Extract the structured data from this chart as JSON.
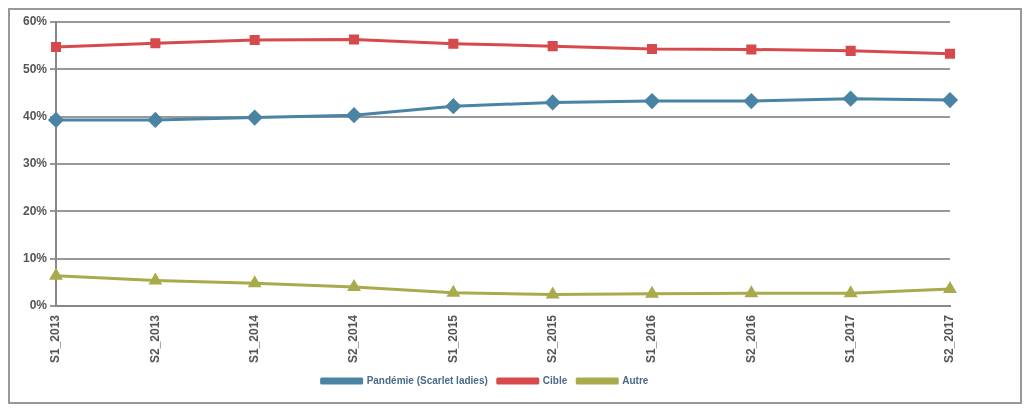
{
  "chart_data": {
    "type": "line",
    "categories": [
      "S1_2013",
      "S2_2013",
      "S1_2014",
      "S2_2014",
      "S1_2015",
      "S2_2015",
      "S1_2016",
      "S2_2016",
      "S1_2017",
      "S2_2017"
    ],
    "series": [
      {
        "name": "Pandémie (Scarlet ladies)",
        "color": "#4a84a4",
        "marker": "diamond",
        "values": [
          39.3,
          39.3,
          39.8,
          40.3,
          42.2,
          43.0,
          43.3,
          43.3,
          43.8,
          43.5
        ]
      },
      {
        "name": "Cible",
        "color": "#d64a4c",
        "marker": "square",
        "values": [
          54.7,
          55.5,
          56.2,
          56.3,
          55.4,
          54.9,
          54.3,
          54.2,
          53.9,
          53.3
        ]
      },
      {
        "name": "Autre",
        "color": "#a8aa4c",
        "marker": "triangle",
        "values": [
          6.4,
          5.4,
          4.8,
          4.0,
          2.8,
          2.4,
          2.6,
          2.7,
          2.7,
          3.6
        ]
      }
    ],
    "ylim": [
      0,
      60
    ],
    "yticks": [
      {
        "value": 0,
        "label": "0%"
      },
      {
        "value": 10,
        "label": "10%"
      },
      {
        "value": 20,
        "label": "20%"
      },
      {
        "value": 30,
        "label": "30%"
      },
      {
        "value": 40,
        "label": "40%"
      },
      {
        "value": 50,
        "label": "50%"
      },
      {
        "value": 60,
        "label": "60%"
      }
    ],
    "grid": "y",
    "legend": "bottom",
    "line_style": "solid"
  }
}
